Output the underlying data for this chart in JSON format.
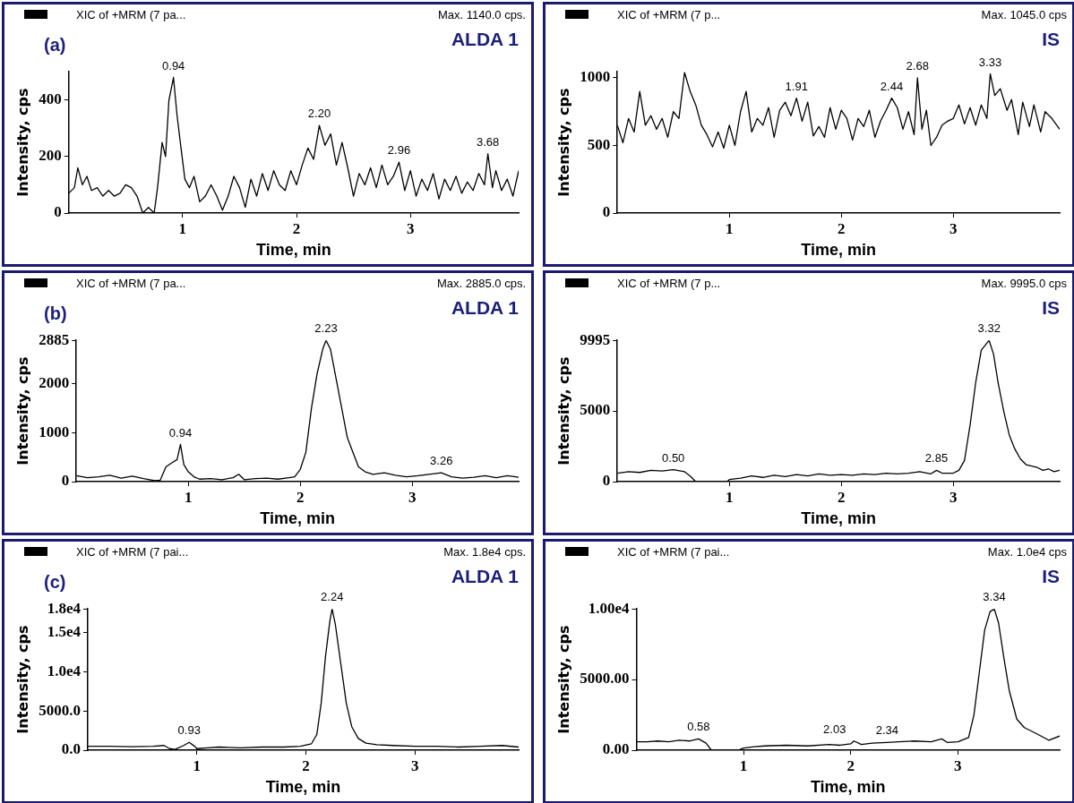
{
  "chart_data": [
    {
      "type": "line",
      "title": "ALDA 1",
      "xlabel": "Time, min",
      "ylabel": "Intensity, cps",
      "marker": "none",
      "grid": false,
      "legend": false,
      "annotations": [
        "XIC of +MRM (7 pa...",
        "Max. 1140.0 cps.",
        "(a)",
        {
          "text": "0.94",
          "x": 0.92,
          "y": 480
        },
        {
          "text": "2.20",
          "x": 2.2,
          "y": 310
        },
        {
          "text": "2.96",
          "x": 2.9,
          "y": 180
        },
        {
          "text": "3.68",
          "x": 3.68,
          "y": 210
        }
      ],
      "xlim": [
        0,
        3.95
      ],
      "xticks": [
        1,
        2,
        3
      ],
      "ylim": [
        0,
        500
      ],
      "yticks": [
        0,
        200,
        400
      ],
      "x": [
        0,
        0.05,
        0.08,
        0.12,
        0.16,
        0.2,
        0.25,
        0.3,
        0.35,
        0.4,
        0.45,
        0.5,
        0.55,
        0.6,
        0.65,
        0.7,
        0.75,
        0.78,
        0.82,
        0.85,
        0.88,
        0.92,
        0.95,
        0.98,
        1.02,
        1.06,
        1.1,
        1.15,
        1.2,
        1.25,
        1.3,
        1.35,
        1.4,
        1.45,
        1.5,
        1.55,
        1.6,
        1.65,
        1.7,
        1.75,
        1.8,
        1.85,
        1.9,
        1.95,
        2.0,
        2.05,
        2.1,
        2.15,
        2.2,
        2.25,
        2.3,
        2.35,
        2.4,
        2.45,
        2.5,
        2.55,
        2.6,
        2.65,
        2.7,
        2.75,
        2.8,
        2.85,
        2.9,
        2.95,
        3.0,
        3.05,
        3.1,
        3.15,
        3.2,
        3.25,
        3.3,
        3.35,
        3.4,
        3.45,
        3.5,
        3.55,
        3.6,
        3.65,
        3.68,
        3.72,
        3.75,
        3.8,
        3.85,
        3.9,
        3.95
      ],
      "series": [
        {
          "color": "#000000",
          "values": [
            70,
            90,
            160,
            100,
            130,
            80,
            90,
            60,
            80,
            60,
            70,
            100,
            90,
            60,
            0,
            20,
            0,
            90,
            250,
            200,
            400,
            480,
            350,
            250,
            120,
            90,
            130,
            40,
            60,
            100,
            60,
            10,
            60,
            130,
            90,
            20,
            120,
            60,
            140,
            80,
            150,
            100,
            80,
            150,
            100,
            170,
            230,
            190,
            310,
            240,
            280,
            170,
            250,
            160,
            60,
            140,
            100,
            160,
            90,
            170,
            100,
            130,
            180,
            80,
            150,
            60,
            120,
            80,
            140,
            50,
            120,
            80,
            130,
            70,
            110,
            80,
            140,
            100,
            210,
            90,
            150,
            80,
            120,
            60,
            150
          ]
        }
      ]
    },
    {
      "type": "line",
      "title": "IS",
      "xlabel": "Time, min",
      "ylabel": "Intensity, cps",
      "marker": "none",
      "grid": false,
      "legend": false,
      "annotations": [
        "XIC of +MRM (7 p...",
        "Max. 1045.0 cps",
        {
          "text": "1.91",
          "x": 1.6,
          "y": 850
        },
        {
          "text": "2.44",
          "x": 2.45,
          "y": 850
        },
        {
          "text": "2.68",
          "x": 2.68,
          "y": 1000
        },
        {
          "text": "3.33",
          "x": 3.33,
          "y": 1030
        }
      ],
      "xlim": [
        0,
        3.95
      ],
      "xticks": [
        1,
        2,
        3
      ],
      "ylim": [
        0,
        1045
      ],
      "yticks": [
        0,
        500,
        1000
      ],
      "x": [
        0,
        0.05,
        0.1,
        0.15,
        0.2,
        0.25,
        0.3,
        0.35,
        0.4,
        0.45,
        0.5,
        0.55,
        0.6,
        0.65,
        0.7,
        0.75,
        0.8,
        0.85,
        0.9,
        0.95,
        1.0,
        1.05,
        1.1,
        1.15,
        1.2,
        1.25,
        1.3,
        1.35,
        1.4,
        1.45,
        1.5,
        1.55,
        1.6,
        1.65,
        1.7,
        1.75,
        1.8,
        1.85,
        1.9,
        1.95,
        2.0,
        2.05,
        2.1,
        2.15,
        2.2,
        2.25,
        2.3,
        2.35,
        2.4,
        2.45,
        2.5,
        2.55,
        2.6,
        2.65,
        2.68,
        2.72,
        2.76,
        2.8,
        2.85,
        2.9,
        2.95,
        3.0,
        3.05,
        3.1,
        3.15,
        3.2,
        3.25,
        3.3,
        3.33,
        3.37,
        3.42,
        3.48,
        3.52,
        3.58,
        3.62,
        3.68,
        3.72,
        3.78,
        3.82,
        3.88,
        3.95
      ],
      "series": [
        {
          "color": "#000000",
          "values": [
            650,
            520,
            700,
            600,
            900,
            650,
            720,
            620,
            700,
            560,
            750,
            700,
            1040,
            900,
            800,
            650,
            580,
            490,
            600,
            480,
            650,
            500,
            750,
            900,
            600,
            700,
            650,
            780,
            560,
            760,
            820,
            720,
            850,
            680,
            820,
            570,
            640,
            560,
            780,
            620,
            760,
            700,
            540,
            700,
            640,
            760,
            560,
            680,
            760,
            850,
            780,
            620,
            750,
            580,
            1000,
            620,
            760,
            500,
            560,
            650,
            680,
            700,
            800,
            660,
            780,
            650,
            800,
            700,
            1030,
            870,
            920,
            760,
            840,
            580,
            820,
            640,
            800,
            600,
            750,
            700,
            620
          ]
        }
      ]
    },
    {
      "type": "line",
      "title": "ALDA 1",
      "xlabel": "Time, min",
      "ylabel": "Intensity, cps",
      "marker": "none",
      "grid": false,
      "legend": false,
      "annotations": [
        "XIC of +MRM (7 pa...",
        "Max. 2885.0 cps.",
        "(b)",
        {
          "text": "0.94",
          "x": 0.93,
          "y": 760
        },
        {
          "text": "2.23",
          "x": 2.23,
          "y": 2885
        },
        {
          "text": "3.26",
          "x": 3.26,
          "y": 180
        }
      ],
      "xlim": [
        0,
        3.95
      ],
      "xticks": [
        1,
        2,
        3
      ],
      "ylim": [
        0,
        2885
      ],
      "yticks": [
        0,
        1000,
        2000,
        2885
      ],
      "x": [
        0,
        0.1,
        0.2,
        0.3,
        0.4,
        0.5,
        0.6,
        0.7,
        0.75,
        0.8,
        0.85,
        0.9,
        0.93,
        0.96,
        1.0,
        1.05,
        1.1,
        1.2,
        1.3,
        1.4,
        1.45,
        1.5,
        1.6,
        1.7,
        1.8,
        1.9,
        1.95,
        2.0,
        2.05,
        2.1,
        2.15,
        2.2,
        2.23,
        2.27,
        2.32,
        2.37,
        2.42,
        2.47,
        2.52,
        2.58,
        2.65,
        2.75,
        2.85,
        2.95,
        3.05,
        3.15,
        3.26,
        3.35,
        3.45,
        3.55,
        3.65,
        3.75,
        3.85,
        3.95
      ],
      "series": [
        {
          "color": "#000000",
          "values": [
            120,
            80,
            100,
            130,
            70,
            110,
            60,
            20,
            30,
            300,
            380,
            450,
            760,
            350,
            200,
            100,
            50,
            60,
            40,
            80,
            150,
            40,
            60,
            70,
            50,
            80,
            100,
            250,
            600,
            1500,
            2200,
            2700,
            2885,
            2700,
            2100,
            1500,
            900,
            600,
            300,
            200,
            150,
            180,
            130,
            100,
            120,
            150,
            180,
            100,
            70,
            90,
            120,
            80,
            120,
            90
          ]
        }
      ]
    },
    {
      "type": "line",
      "title": "IS",
      "xlabel": "Time, min",
      "ylabel": "Intensity, cps",
      "marker": "none",
      "grid": false,
      "legend": false,
      "annotations": [
        "XIC of +MRM (7 p...",
        "Max. 9995.0 cps",
        {
          "text": "0.50",
          "x": 0.5,
          "y": 850
        },
        {
          "text": "2.85",
          "x": 2.85,
          "y": 800
        },
        {
          "text": "3.32",
          "x": 3.32,
          "y": 9995
        }
      ],
      "xlim": [
        0,
        3.95
      ],
      "xticks": [
        1,
        2,
        3
      ],
      "ylim": [
        0,
        9995
      ],
      "yticks": [
        0,
        5000,
        9995
      ],
      "x": [
        0,
        0.1,
        0.2,
        0.3,
        0.4,
        0.5,
        0.6,
        0.65,
        0.7,
        0.98,
        1.0,
        1.1,
        1.2,
        1.3,
        1.4,
        1.5,
        1.6,
        1.7,
        1.8,
        1.9,
        2.0,
        2.1,
        2.2,
        2.3,
        2.4,
        2.5,
        2.6,
        2.7,
        2.8,
        2.85,
        2.9,
        3.0,
        3.05,
        3.1,
        3.15,
        3.2,
        3.25,
        3.29,
        3.32,
        3.36,
        3.4,
        3.45,
        3.5,
        3.55,
        3.6,
        3.65,
        3.7,
        3.75,
        3.8,
        3.85,
        3.9,
        3.95
      ],
      "series": [
        {
          "color": "#000000",
          "values": [
            600,
            700,
            650,
            800,
            750,
            850,
            700,
            400,
            0,
            0,
            150,
            250,
            400,
            300,
            450,
            350,
            500,
            400,
            550,
            450,
            500,
            450,
            550,
            500,
            600,
            550,
            600,
            700,
            550,
            800,
            600,
            600,
            800,
            1500,
            4000,
            7000,
            9300,
            9700,
            9995,
            9000,
            7000,
            5000,
            3300,
            2300,
            1600,
            1200,
            1100,
            1000,
            800,
            900,
            700,
            800
          ]
        }
      ]
    },
    {
      "type": "line",
      "title": "ALDA 1",
      "xlabel": "Time, min",
      "ylabel": "Intensity, cps",
      "marker": "none",
      "grid": false,
      "legend": false,
      "annotations": [
        "XIC of +MRM (7 pai...",
        "Max. 1.8e4 cps.",
        "(c)",
        {
          "text": "0.93",
          "x": 0.93,
          "y": 1000
        },
        {
          "text": "2.24",
          "x": 2.24,
          "y": 18000
        }
      ],
      "xlim": [
        0,
        3.95
      ],
      "xticks": [
        1,
        2,
        3
      ],
      "ylim": [
        0,
        18000
      ],
      "yticks": [
        {
          "value": 0,
          "label": "0.0"
        },
        {
          "value": 5000,
          "label": "5000.0"
        },
        {
          "value": 10000,
          "label": "1.0e4"
        },
        {
          "value": 15000,
          "label": "1.5e4"
        },
        {
          "value": 18000,
          "label": "1.8e4"
        }
      ],
      "x": [
        0,
        0.2,
        0.4,
        0.6,
        0.7,
        0.75,
        0.8,
        0.88,
        0.93,
        0.98,
        1.0,
        1.1,
        1.2,
        1.4,
        1.6,
        1.8,
        1.95,
        2.05,
        2.1,
        2.14,
        2.18,
        2.22,
        2.24,
        2.27,
        2.32,
        2.37,
        2.42,
        2.48,
        2.55,
        2.65,
        2.8,
        3.0,
        3.2,
        3.4,
        3.6,
        3.8,
        3.95
      ],
      "series": [
        {
          "color": "#000000",
          "values": [
            500,
            500,
            450,
            500,
            600,
            200,
            100,
            600,
            1000,
            500,
            200,
            300,
            400,
            300,
            400,
            400,
            500,
            800,
            2000,
            6000,
            12000,
            16500,
            18000,
            16000,
            11000,
            6000,
            3000,
            1500,
            900,
            700,
            600,
            500,
            500,
            400,
            500,
            600,
            400
          ]
        }
      ]
    },
    {
      "type": "line",
      "title": "IS",
      "xlabel": "Time, min",
      "ylabel": "Intensity, cps",
      "marker": "none",
      "grid": false,
      "legend": false,
      "annotations": [
        "XIC of +MRM (7 pai...",
        "Max. 1.0e4 cps",
        {
          "text": "0.58",
          "x": 0.58,
          "y": 800
        },
        {
          "text": "2.03",
          "x": 1.85,
          "y": 650
        },
        {
          "text": "2.34",
          "x": 2.34,
          "y": 600
        },
        {
          "text": "3.34",
          "x": 3.34,
          "y": 10000
        }
      ],
      "xlim": [
        0,
        3.95
      ],
      "xticks": [
        1,
        2,
        3
      ],
      "ylim": [
        0,
        10000
      ],
      "yticks": [
        {
          "value": 0,
          "label": "0.00"
        },
        {
          "value": 5000,
          "label": "5000.00"
        },
        {
          "value": 10000,
          "label": "1.00e4"
        }
      ],
      "x": [
        0,
        0.1,
        0.2,
        0.3,
        0.4,
        0.5,
        0.58,
        0.65,
        0.7,
        0.95,
        1.0,
        1.1,
        1.2,
        1.4,
        1.6,
        1.8,
        1.9,
        2.0,
        2.03,
        2.1,
        2.2,
        2.34,
        2.45,
        2.6,
        2.75,
        2.85,
        2.9,
        3.0,
        3.1,
        3.15,
        3.2,
        3.25,
        3.3,
        3.34,
        3.38,
        3.43,
        3.48,
        3.55,
        3.62,
        3.7,
        3.8,
        3.85,
        3.95
      ],
      "series": [
        {
          "color": "#000000",
          "values": [
            600,
            600,
            650,
            600,
            700,
            650,
            800,
            500,
            0,
            0,
            150,
            250,
            300,
            350,
            300,
            400,
            350,
            450,
            650,
            400,
            500,
            550,
            600,
            650,
            600,
            800,
            550,
            600,
            900,
            2500,
            5500,
            8500,
            9800,
            10000,
            9000,
            6500,
            4200,
            2200,
            1600,
            1300,
            900,
            700,
            1000
          ]
        }
      ]
    }
  ]
}
